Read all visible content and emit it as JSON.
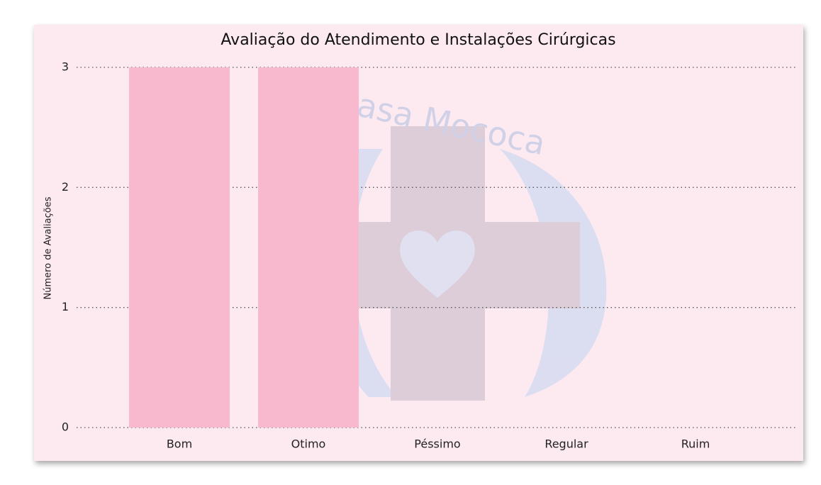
{
  "chart_data": {
    "type": "bar",
    "title": "Avaliação do Atendimento e Instalações Cirúrgicas",
    "y_label": "Número de Avaliações",
    "watermark": "Casa Mococa",
    "categories": [
      "Bom",
      "Otimo",
      "Péssimo",
      "Regular",
      "Ruim"
    ],
    "values": [
      3,
      3,
      0,
      0,
      0
    ],
    "color": "#f8b9cf",
    "ylim": [
      0,
      3
    ],
    "yticks": [
      0,
      1,
      2,
      3
    ],
    "grid": true
  }
}
